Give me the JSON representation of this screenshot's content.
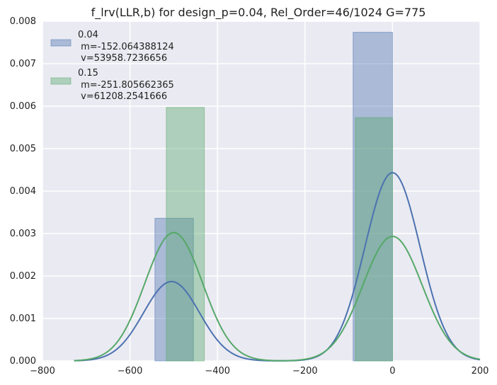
{
  "chart_data": {
    "type": "bar",
    "title": "f_lrv(LLR,b) for design_p=0.04, Rel_Order=46/1024 G=775",
    "xlabel": "",
    "ylabel": "",
    "xlim": [
      -800,
      200
    ],
    "ylim": [
      0,
      0.008
    ],
    "x_ticks": [
      -800,
      -600,
      -400,
      -200,
      0,
      200
    ],
    "x_tick_labels": [
      "−800",
      "−600",
      "−400",
      "−200",
      "0",
      "200"
    ],
    "y_ticks": [
      0,
      0.001,
      0.002,
      0.003,
      0.004,
      0.005,
      0.006,
      0.007,
      0.008
    ],
    "y_tick_labels": [
      "0.000",
      "0.001",
      "0.002",
      "0.003",
      "0.004",
      "0.005",
      "0.006",
      "0.007",
      "0.008"
    ],
    "grid": true,
    "legend_position": "top-left",
    "legend": [
      {
        "name": "0.04",
        "line1": "m=-152.064388124",
        "line2": "v=53958.7236656",
        "color": "#4c72b0"
      },
      {
        "name": "0.15",
        "line1": "m=-251.805662365",
        "line2": "v=61208.2541666",
        "color": "#55a868"
      }
    ],
    "series": [
      {
        "name": "0.04",
        "color": "#4c72b0",
        "bars": [
          {
            "x0": -543,
            "x1": -455,
            "height": 0.00336
          },
          {
            "x0": -90,
            "x1": 0,
            "height": 0.00774
          }
        ],
        "curve": {
          "x_range": [
            -728,
            200
          ],
          "components": [
            {
              "weight": 0.3,
              "mean": -505,
              "std": 64
            },
            {
              "weight": 0.7,
              "mean": 0,
              "std": 63
            }
          ]
        }
      },
      {
        "name": "0.15",
        "color": "#55a868",
        "bars": [
          {
            "x0": -517,
            "x1": -430,
            "height": 0.00597
          },
          {
            "x0": -85,
            "x1": 0,
            "height": 0.00573
          }
        ],
        "curve": {
          "x_range": [
            -728,
            200
          ],
          "components": [
            {
              "weight": 0.5,
              "mean": -500,
              "std": 66
            },
            {
              "weight": 0.5,
              "mean": 0,
              "std": 68
            }
          ]
        }
      }
    ]
  }
}
